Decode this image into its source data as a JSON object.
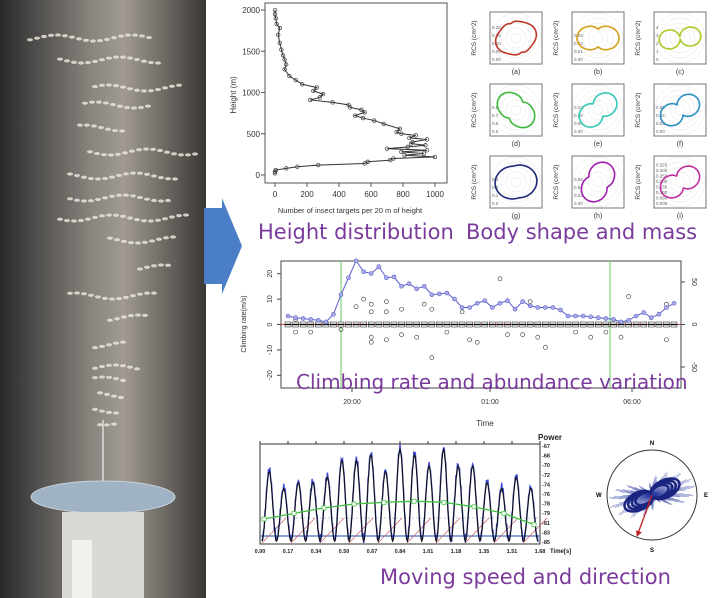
{
  "captions": {
    "height": "Height distribution",
    "body": "Body shape and mass",
    "climbing": "Climbing rate and abundance variation",
    "moving": "Moving speed and direction"
  },
  "colors": {
    "caption": "#7a3b9c",
    "arrow": "#4a7fc8",
    "abundance": "#5b5fc7",
    "zero_line": "#d04040",
    "sunline": "#6ac86a"
  },
  "chart_data": [
    {
      "id": "height",
      "type": "line",
      "xlabel": "Number of insect targets per 20  m of height",
      "ylabel": "Height (m)",
      "xlim": [
        0,
        1000
      ],
      "ylim": [
        0,
        2000
      ],
      "xticks": [
        "0",
        "200",
        "400",
        "600",
        "800",
        "1000"
      ],
      "yticks": [
        "0",
        "500",
        "1000",
        "1500",
        "2000"
      ],
      "points": [
        [
          0,
          20
        ],
        [
          0,
          40
        ],
        [
          5,
          60
        ],
        [
          70,
          80
        ],
        [
          140,
          100
        ],
        [
          270,
          120
        ],
        [
          560,
          140
        ],
        [
          580,
          160
        ],
        [
          720,
          180
        ],
        [
          740,
          200
        ],
        [
          1000,
          220
        ],
        [
          810,
          240
        ],
        [
          930,
          260
        ],
        [
          790,
          280
        ],
        [
          950,
          300
        ],
        [
          700,
          320
        ],
        [
          830,
          340
        ],
        [
          940,
          360
        ],
        [
          850,
          380
        ],
        [
          860,
          400
        ],
        [
          950,
          430
        ],
        [
          840,
          450
        ],
        [
          880,
          480
        ],
        [
          790,
          500
        ],
        [
          760,
          520
        ],
        [
          780,
          560
        ],
        [
          680,
          620
        ],
        [
          620,
          660
        ],
        [
          550,
          690
        ],
        [
          500,
          720
        ],
        [
          560,
          760
        ],
        [
          540,
          790
        ],
        [
          470,
          820
        ],
        [
          460,
          850
        ],
        [
          360,
          880
        ],
        [
          220,
          910
        ],
        [
          280,
          940
        ],
        [
          300,
          980
        ],
        [
          240,
          1020
        ],
        [
          260,
          1060
        ],
        [
          170,
          1100
        ],
        [
          130,
          1150
        ],
        [
          90,
          1200
        ],
        [
          60,
          1280
        ],
        [
          70,
          1340
        ],
        [
          60,
          1400
        ],
        [
          50,
          1450
        ],
        [
          40,
          1520
        ],
        [
          30,
          1600
        ],
        [
          20,
          1700
        ],
        [
          30,
          1780
        ],
        [
          10,
          1830
        ],
        [
          5,
          1900
        ],
        [
          0,
          1950
        ],
        [
          0,
          2000
        ]
      ]
    },
    {
      "id": "rcs",
      "type": "polar",
      "ylabel": "RCS (cm^2)",
      "panels": [
        {
          "label": "(a)",
          "color": "#c0392b",
          "ticks": [
            "0.00",
            "0.05",
            "0.10",
            "0.15",
            "0.20"
          ],
          "lobes": 2,
          "ratio": 0.45,
          "rotation": 20,
          "bumps": 0.35
        },
        {
          "label": "(b)",
          "color": "#d4a017",
          "ticks": [
            "0.00",
            "0.01",
            "0.02",
            "0.03"
          ],
          "lobes": 2,
          "ratio": 0.35,
          "rotation": 0,
          "bumps": 0.1
        },
        {
          "label": "(c)",
          "color": "#a8cc2a",
          "ticks": [
            "0",
            "1",
            "2",
            "3",
            "4"
          ],
          "lobes": 2,
          "ratio": 0.0,
          "rotation": 8,
          "bumps": 0
        },
        {
          "label": "(d)",
          "color": "#3cb83c",
          "ticks": [
            "0.5",
            "0.6",
            "0.7",
            "0.8"
          ],
          "lobes": 2,
          "ratio": 0.45,
          "rotation": -40,
          "bumps": 0.1
        },
        {
          "label": "(e)",
          "color": "#35c9b5",
          "ticks": [
            "0.00",
            "0.04",
            "0.08",
            "0.12"
          ],
          "lobes": 2,
          "ratio": 0.4,
          "rotation": 38,
          "bumps": 0
        },
        {
          "label": "(f)",
          "color": "#2a8fc0",
          "ticks": [
            "0.00",
            "0.02",
            "0.04",
            "0.06"
          ],
          "lobes": 2,
          "ratio": 0.3,
          "rotation": 30,
          "bumps": 0
        },
        {
          "label": "(g)",
          "color": "#1f2a7a",
          "ticks": [
            "0.0",
            "0.1",
            "0.2",
            "0.3"
          ],
          "lobes": 2,
          "ratio": 0.85,
          "rotation": 10,
          "bumps": 0
        },
        {
          "label": "(h)",
          "color": "#a020b0",
          "ticks": [
            "0.00",
            "0.02",
            "0.04",
            "0.06"
          ],
          "lobes": 2,
          "ratio": 0.55,
          "rotation": 60,
          "bumps": 0
        },
        {
          "label": "(i)",
          "color": "#c030a0",
          "ticks": [
            "0.000",
            "0.050",
            "0.100",
            "0.150",
            "0.200",
            "0.250",
            "0.300",
            "0.325"
          ],
          "lobes": 2,
          "ratio": 0.35,
          "rotation": 30,
          "bumps": 0
        }
      ]
    },
    {
      "id": "climbing",
      "type": "box+line",
      "xlabel": "Time",
      "ylabel": "Climbing rate(m/s)",
      "ylim": [
        -25,
        25
      ],
      "yticks": [
        "-20",
        "-10",
        "0",
        "10",
        "20"
      ],
      "y2lim": [
        -75,
        75
      ],
      "y2ticks": [
        "-50",
        "0",
        "50"
      ],
      "xticks": [
        "20:00",
        "01:00",
        "06:00"
      ],
      "abundance": [
        10,
        8,
        7,
        6,
        5,
        3,
        12,
        35,
        55,
        75,
        62,
        60,
        68,
        55,
        56,
        45,
        48,
        42,
        45,
        35,
        36,
        37,
        30,
        20,
        20,
        25,
        28,
        20,
        25,
        28,
        18,
        27,
        22,
        20,
        20,
        20,
        17,
        10,
        10,
        10,
        9,
        8,
        7,
        6,
        3,
        5,
        10,
        14,
        8,
        12,
        20,
        25
      ],
      "outliers": [
        [
          1,
          2
        ],
        [
          1,
          -3
        ],
        [
          3,
          -3
        ],
        [
          7,
          -2
        ],
        [
          9,
          7
        ],
        [
          10,
          10
        ],
        [
          11,
          8
        ],
        [
          11,
          5
        ],
        [
          11,
          -5
        ],
        [
          11,
          -7
        ],
        [
          13,
          9
        ],
        [
          13,
          5
        ],
        [
          13,
          -6
        ],
        [
          15,
          6
        ],
        [
          15,
          -4
        ],
        [
          17,
          -5
        ],
        [
          18,
          8
        ],
        [
          19,
          6
        ],
        [
          19,
          -13
        ],
        [
          21,
          -3
        ],
        [
          23,
          5
        ],
        [
          24,
          -6
        ],
        [
          25,
          -7
        ],
        [
          28,
          18
        ],
        [
          29,
          -4
        ],
        [
          31,
          -4
        ],
        [
          32,
          9
        ],
        [
          33,
          -5
        ],
        [
          34,
          -9
        ],
        [
          38,
          -3
        ],
        [
          40,
          -5
        ],
        [
          42,
          -3
        ],
        [
          44,
          -5
        ],
        [
          45,
          11
        ],
        [
          50,
          8
        ],
        [
          50,
          -6
        ]
      ]
    },
    {
      "id": "power",
      "type": "line",
      "ylabel": "Power",
      "xlabel": "Time[s]",
      "xticks": [
        "0.00",
        "0.17",
        "0.34",
        "0.50",
        "0.67",
        "0.84",
        "1.01",
        "1.18",
        "1.35",
        "1.51",
        "1.68"
      ],
      "yticks": [
        "-67",
        "-68",
        "-70",
        "-72",
        "-74",
        "-76",
        "-78",
        "-79",
        "-81",
        "-83",
        "-85"
      ],
      "peaks": [
        -72,
        -75,
        -74,
        -74,
        -73,
        -70,
        -70,
        -69,
        -72,
        -68,
        -69,
        -71,
        -68,
        -71,
        -71,
        -74,
        -75,
        -73,
        -75
      ],
      "trend": [
        -80.5,
        -79.5,
        -78.5,
        -77.8,
        -77.5,
        -77.3,
        -77.5,
        -78.3,
        -79.5,
        -81.5
      ]
    },
    {
      "id": "direction",
      "type": "polar",
      "directions": [
        "N",
        "E",
        "S",
        "W"
      ],
      "heading_deg": 200
    }
  ]
}
